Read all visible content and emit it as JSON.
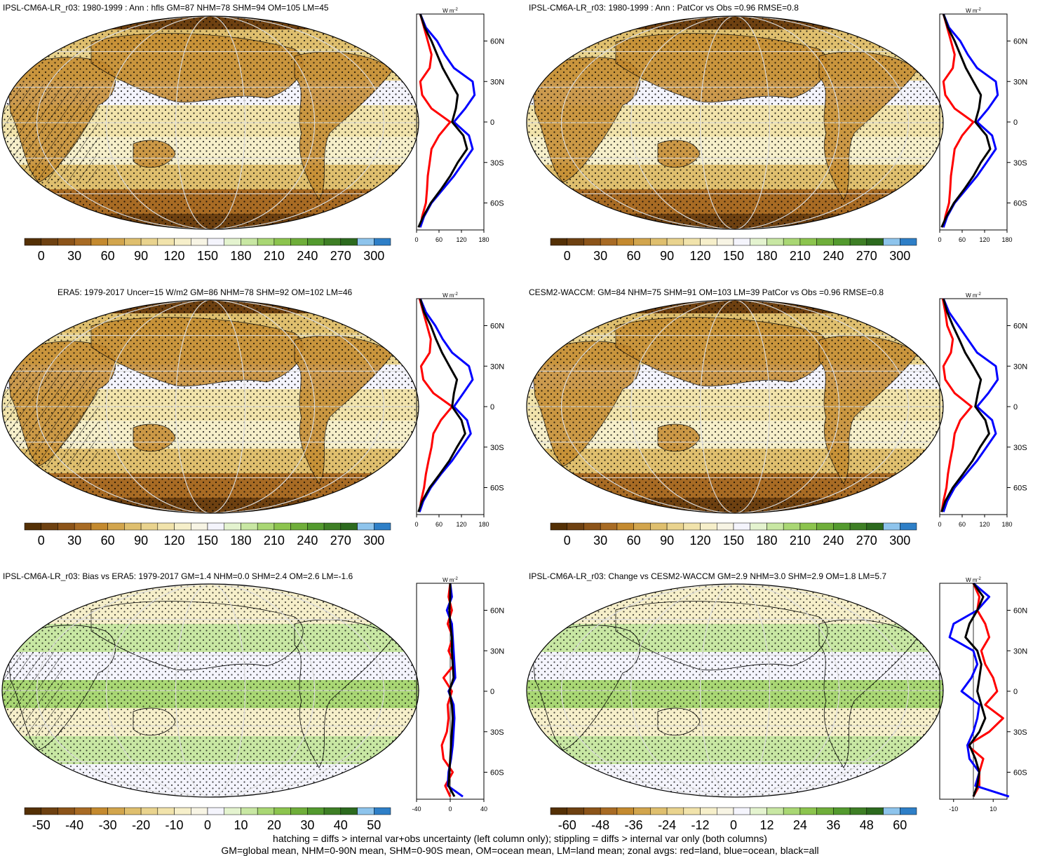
{
  "figure": {
    "footer_line1": "hatching = diffs > internal var+obs uncertainty (left column only); stippling = diffs > internal var only (both columns)",
    "footer_line2": "GM=global mean, NHM=0-90N mean, SHM=0-90S mean, OM=ocean mean, LM=land mean; zonal avgs: red=land, blue=ocean, black=all"
  },
  "colors": {
    "land_line": "#ff0000",
    "ocean_line": "#0000ff",
    "all_line": "#000000",
    "abs_palette": [
      "#543005",
      "#6e4111",
      "#8c5419",
      "#a86b24",
      "#c48a2f",
      "#d2a54d",
      "#dfbf6e",
      "#e9d38e",
      "#f1e3ab",
      "#f6efca",
      "#f7f4e4",
      "#f4f4fc",
      "#e4f3cf",
      "#c8e7a3",
      "#a9d774",
      "#8cc44e",
      "#6fae3a",
      "#539a2e",
      "#3e7f25",
      "#2c6a1e",
      "#8ec4ec",
      "#2e7fc7"
    ],
    "diff_palette": [
      "#543005",
      "#6e4111",
      "#8c5419",
      "#a86b24",
      "#c48a2f",
      "#d2a54d",
      "#dfbf6e",
      "#e9d38e",
      "#f1e3ab",
      "#f6efca",
      "#f7f4e4",
      "#f4f4fc",
      "#e4f3cf",
      "#c8e7a3",
      "#a9d774",
      "#8cc44e",
      "#6fae3a",
      "#539a2e",
      "#3e7f25",
      "#2c6a1e",
      "#8ec4ec",
      "#2e7fc7"
    ]
  },
  "panels": [
    {
      "title": "IPSL-CM6A-LR_r03: 1980-1999 : Ann : hfls GM=87 NHM=78 SHM=94 OM=105 LM=45",
      "colorbar_ticks": [
        "0",
        "30",
        "60",
        "90",
        "120",
        "150",
        "180",
        "210",
        "240",
        "270",
        "300"
      ],
      "chart_data": {
        "type": "line",
        "units": "W m-2",
        "xlim": [
          0,
          180
        ],
        "x_ticks": [
          "0",
          "60",
          "120",
          "180"
        ],
        "lat_ticks": [
          "60N",
          "30N",
          "0",
          "30S",
          "60S"
        ],
        "series": [
          {
            "name": "land",
            "lat": [
              80,
              70,
              60,
              50,
              40,
              30,
              20,
              10,
              0,
              -10,
              -20,
              -30,
              -40,
              -50,
              -60,
              -70,
              -78
            ],
            "values": [
              10,
              20,
              30,
              40,
              35,
              10,
              15,
              40,
              90,
              60,
              40,
              35,
              30,
              28,
              25,
              15,
              10
            ]
          },
          {
            "name": "ocean",
            "lat": [
              80,
              70,
              60,
              50,
              40,
              30,
              20,
              10,
              0,
              -10,
              -20,
              -30,
              -40,
              -50,
              -60,
              -70,
              -78
            ],
            "values": [
              10,
              25,
              55,
              75,
              100,
              150,
              155,
              130,
              100,
              140,
              150,
              125,
              100,
              70,
              40,
              20,
              10
            ]
          },
          {
            "name": "all",
            "lat": [
              80,
              70,
              60,
              50,
              40,
              30,
              20,
              10,
              0,
              -10,
              -20,
              -30,
              -40,
              -50,
              -60,
              -70,
              -78
            ],
            "values": [
              10,
              22,
              40,
              55,
              70,
              90,
              110,
              105,
              95,
              125,
              135,
              110,
              90,
              65,
              38,
              18,
              5
            ]
          }
        ]
      }
    },
    {
      "title": "IPSL-CM6A-LR_r03: 1980-1999 : Ann : PatCor vs Obs =0.96 RMSE=0.8",
      "colorbar_ticks": [
        "0",
        "30",
        "60",
        "90",
        "120",
        "150",
        "180",
        "210",
        "240",
        "270",
        "300"
      ],
      "chart_data": {
        "type": "line",
        "units": "W m-2",
        "xlim": [
          0,
          180
        ],
        "x_ticks": [
          "0",
          "60",
          "120",
          "180"
        ],
        "lat_ticks": [
          "60N",
          "30N",
          "0",
          "30S",
          "60S"
        ],
        "series": [
          {
            "name": "land",
            "lat": [
              80,
              70,
              60,
              50,
              40,
              30,
              20,
              10,
              0,
              -10,
              -20,
              -30,
              -40,
              -50,
              -60,
              -70,
              -78
            ],
            "values": [
              10,
              20,
              30,
              40,
              35,
              10,
              15,
              40,
              90,
              60,
              40,
              35,
              30,
              28,
              25,
              15,
              10
            ]
          },
          {
            "name": "ocean",
            "lat": [
              80,
              70,
              60,
              50,
              40,
              30,
              20,
              10,
              0,
              -10,
              -20,
              -30,
              -40,
              -50,
              -60,
              -70,
              -78
            ],
            "values": [
              10,
              25,
              55,
              75,
              100,
              150,
              155,
              130,
              100,
              140,
              150,
              125,
              100,
              70,
              40,
              20,
              10
            ]
          },
          {
            "name": "all",
            "lat": [
              80,
              70,
              60,
              50,
              40,
              30,
              20,
              10,
              0,
              -10,
              -20,
              -30,
              -40,
              -50,
              -60,
              -70,
              -78
            ],
            "values": [
              10,
              22,
              40,
              55,
              70,
              90,
              110,
              105,
              95,
              125,
              135,
              110,
              90,
              65,
              38,
              18,
              5
            ]
          }
        ]
      }
    },
    {
      "title": "ERA5: 1979-2017 Uncer=15 W/m2 GM=86 NHM=78 SHM=92 OM=102 LM=46",
      "colorbar_ticks": [
        "0",
        "30",
        "60",
        "90",
        "120",
        "150",
        "180",
        "210",
        "240",
        "270",
        "300"
      ],
      "chart_data": {
        "type": "line",
        "units": "W m-2",
        "xlim": [
          0,
          180
        ],
        "x_ticks": [
          "0",
          "60",
          "120",
          "180"
        ],
        "lat_ticks": [
          "60N",
          "30N",
          "0",
          "30S",
          "60S"
        ],
        "series": [
          {
            "name": "land",
            "lat": [
              80,
              70,
              60,
              50,
              40,
              30,
              20,
              10,
              0,
              -10,
              -20,
              -30,
              -40,
              -50,
              -60,
              -70,
              -78
            ],
            "values": [
              8,
              18,
              28,
              38,
              35,
              12,
              18,
              45,
              95,
              65,
              45,
              40,
              32,
              25,
              20,
              12,
              8
            ]
          },
          {
            "name": "ocean",
            "lat": [
              80,
              70,
              60,
              50,
              40,
              30,
              20,
              10,
              0,
              -10,
              -20,
              -30,
              -40,
              -50,
              -60,
              -70,
              -78
            ],
            "values": [
              10,
              25,
              50,
              70,
              95,
              140,
              150,
              125,
              100,
              135,
              145,
              120,
              95,
              65,
              38,
              18,
              8
            ]
          },
          {
            "name": "all",
            "lat": [
              80,
              70,
              60,
              50,
              40,
              30,
              20,
              10,
              0,
              -10,
              -20,
              -30,
              -40,
              -50,
              -60,
              -70,
              -78
            ],
            "values": [
              10,
              20,
              38,
              52,
              68,
              88,
              108,
              100,
              95,
              120,
              130,
              108,
              88,
              62,
              35,
              15,
              5
            ]
          }
        ]
      }
    },
    {
      "title": "CESM2-WACCM: GM=84 NHM=75 SHM=91 OM=103 LM=39 PatCor vs Obs =0.96 RMSE=0.8",
      "colorbar_ticks": [
        "0",
        "30",
        "60",
        "90",
        "120",
        "150",
        "180",
        "210",
        "240",
        "270",
        "300"
      ],
      "chart_data": {
        "type": "line",
        "units": "W m-2",
        "xlim": [
          0,
          180
        ],
        "x_ticks": [
          "0",
          "60",
          "120",
          "180"
        ],
        "lat_ticks": [
          "60N",
          "30N",
          "0",
          "30S",
          "60S"
        ],
        "series": [
          {
            "name": "land",
            "lat": [
              80,
              70,
              60,
              50,
              40,
              30,
              20,
              10,
              0,
              -10,
              -20,
              -30,
              -40,
              -50,
              -60,
              -70,
              -78
            ],
            "values": [
              8,
              15,
              20,
              35,
              30,
              10,
              15,
              40,
              85,
              55,
              40,
              35,
              28,
              22,
              18,
              10,
              5
            ]
          },
          {
            "name": "ocean",
            "lat": [
              80,
              70,
              60,
              50,
              40,
              30,
              20,
              10,
              0,
              -10,
              -20,
              -30,
              -40,
              -50,
              -60,
              -70,
              -78
            ],
            "values": [
              10,
              25,
              50,
              75,
              100,
              150,
              155,
              130,
              100,
              140,
              150,
              125,
              100,
              70,
              40,
              20,
              10
            ]
          },
          {
            "name": "all",
            "lat": [
              80,
              70,
              60,
              50,
              40,
              30,
              20,
              10,
              0,
              -10,
              -20,
              -30,
              -40,
              -50,
              -60,
              -70,
              -78
            ],
            "values": [
              10,
              20,
              35,
              52,
              68,
              90,
              110,
              102,
              95,
              122,
              132,
              108,
              88,
              62,
              35,
              15,
              5
            ]
          }
        ]
      }
    },
    {
      "title": "IPSL-CM6A-LR_r03: Bias vs ERA5: 1979-2017 GM=1.4 NHM=0.0 SHM=2.4 OM=2.6 LM=-1.6",
      "colorbar_ticks": [
        "-50",
        "-40",
        "-30",
        "-20",
        "-10",
        "0",
        "10",
        "20",
        "30",
        "40",
        "50"
      ],
      "chart_data": {
        "type": "line",
        "units": "W m-2",
        "xlim": [
          -40,
          40
        ],
        "x_ticks": [
          "-40",
          "0",
          "40"
        ],
        "lat_ticks": [
          "60N",
          "30N",
          "0",
          "30S",
          "60S"
        ],
        "series": [
          {
            "name": "land",
            "lat": [
              80,
              70,
              60,
              50,
              40,
              30,
              20,
              10,
              0,
              -10,
              -20,
              -30,
              -40,
              -50,
              -60,
              -70,
              -78
            ],
            "values": [
              0,
              -2,
              2,
              -3,
              3,
              -2,
              5,
              -8,
              2,
              -3,
              -2,
              -4,
              -10,
              -8,
              3,
              -6,
              0
            ]
          },
          {
            "name": "ocean",
            "lat": [
              80,
              70,
              60,
              50,
              40,
              30,
              20,
              10,
              0,
              -10,
              -20,
              -30,
              -40,
              -50,
              -60,
              -70,
              -78
            ],
            "values": [
              0,
              2,
              -4,
              2,
              3,
              4,
              5,
              6,
              -2,
              4,
              5,
              4,
              3,
              1,
              -2,
              -3,
              15
            ]
          },
          {
            "name": "all",
            "lat": [
              80,
              70,
              60,
              50,
              40,
              30,
              20,
              10,
              0,
              -10,
              -20,
              -30,
              -40,
              -50,
              -60,
              -70,
              -78
            ],
            "values": [
              0,
              0,
              -1,
              0,
              2,
              2,
              3,
              4,
              -1,
              2,
              3,
              2,
              1,
              0,
              -1,
              -2,
              5
            ]
          }
        ]
      }
    },
    {
      "title": "IPSL-CM6A-LR_r03: Change vs CESM2-WACCM GM=2.9 NHM=3.0 SHM=2.9 OM=1.8 LM=5.7",
      "colorbar_ticks": [
        "-60",
        "-48",
        "-36",
        "-24",
        "-12",
        "0",
        "12",
        "24",
        "36",
        "48",
        "60"
      ],
      "chart_data": {
        "type": "line",
        "units": "W m-2",
        "xlim": [
          -17,
          17
        ],
        "x_ticks": [
          "-10",
          "10"
        ],
        "lat_ticks": [
          "60N",
          "30N",
          "0",
          "30S",
          "60S"
        ],
        "series": [
          {
            "name": "land",
            "lat": [
              80,
              70,
              60,
              50,
              40,
              30,
              20,
              10,
              0,
              -10,
              -20,
              -30,
              -40,
              -50,
              -60,
              -70,
              -78
            ],
            "values": [
              0,
              3,
              2,
              6,
              8,
              4,
              6,
              10,
              12,
              6,
              15,
              8,
              -3,
              5,
              3,
              3,
              0
            ]
          },
          {
            "name": "ocean",
            "lat": [
              80,
              70,
              60,
              50,
              40,
              30,
              20,
              10,
              0,
              -10,
              -20,
              -30,
              -40,
              -50,
              -60,
              -70,
              -78
            ],
            "values": [
              0,
              8,
              2,
              -10,
              -12,
              0,
              2,
              -1,
              -6,
              3,
              2,
              0,
              -3,
              -2,
              3,
              1,
              18
            ]
          },
          {
            "name": "all",
            "lat": [
              80,
              70,
              60,
              50,
              40,
              30,
              20,
              10,
              0,
              -10,
              -20,
              -30,
              -40,
              -50,
              -60,
              -70,
              -78
            ],
            "values": [
              0,
              5,
              2,
              -2,
              -4,
              2,
              4,
              3,
              2,
              4,
              6,
              3,
              -2,
              1,
              3,
              2,
              0
            ]
          }
        ]
      }
    }
  ]
}
